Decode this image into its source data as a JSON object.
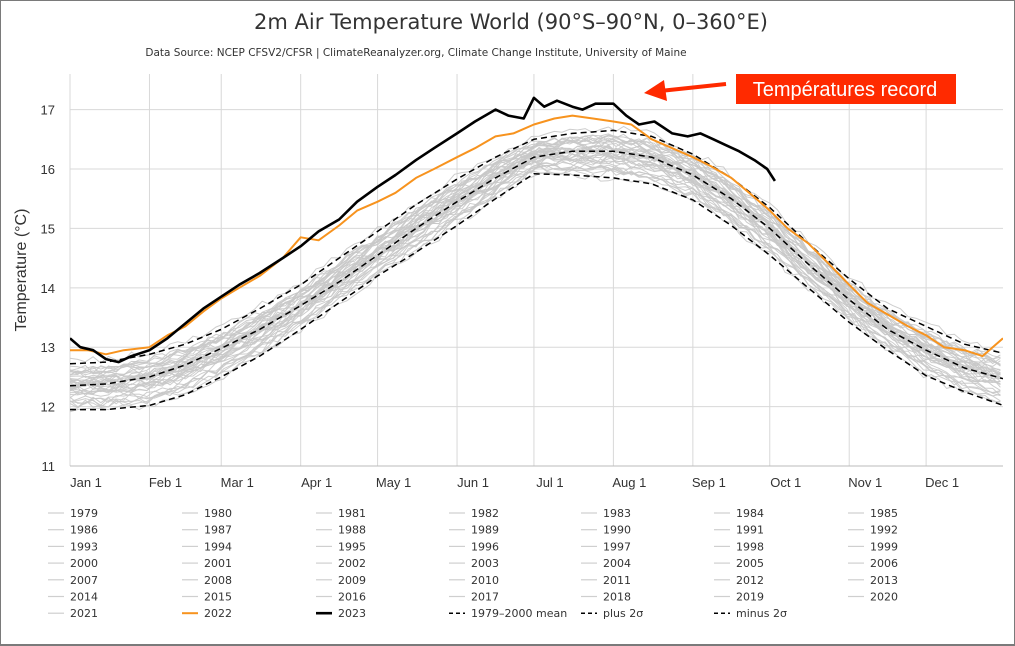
{
  "chart_data": {
    "type": "line",
    "title": "2m Air Temperature World (90°S–90°N, 0–360°E)",
    "subtitle": "Data Source: NCEP CFSV2/CFSR | ClimateReanalyzer.org, Climate Change Institute, University of Maine",
    "ylabel": "Temperature (°C)",
    "xlabel": "",
    "ylim": [
      11,
      17.6
    ],
    "yticks": [
      "11",
      "12",
      "13",
      "14",
      "15",
      "16",
      "17"
    ],
    "x_ticks": [
      {
        "label": "Jan 1",
        "day": 1
      },
      {
        "label": "Feb 1",
        "day": 32
      },
      {
        "label": "Mar 1",
        "day": 60
      },
      {
        "label": "Apr 1",
        "day": 91
      },
      {
        "label": "May 1",
        "day": 121
      },
      {
        "label": "Jun 1",
        "day": 152
      },
      {
        "label": "Jul 1",
        "day": 182
      },
      {
        "label": "Aug 1",
        "day": 213
      },
      {
        "label": "Sep 1",
        "day": 244
      },
      {
        "label": "Oct 1",
        "day": 274
      },
      {
        "label": "Nov 1",
        "day": 305
      },
      {
        "label": "Dec 1",
        "day": 335
      }
    ],
    "grid": true,
    "legend_position": "bottom",
    "annotation": {
      "text": "Températures record",
      "color": "#ff2a00"
    },
    "colors": {
      "past_years": "#c8c8c8",
      "y2022": "#f7931e",
      "y2023": "#000000",
      "stats": "#000000"
    },
    "series": [
      {
        "name": "1979–2000 mean",
        "style": "dashed",
        "x": [
          1,
          15,
          32,
          46,
          60,
          75,
          91,
          106,
          121,
          136,
          152,
          167,
          182,
          197,
          213,
          228,
          244,
          259,
          274,
          289,
          305,
          320,
          335,
          350,
          365
        ],
        "y": [
          12.35,
          12.38,
          12.5,
          12.7,
          12.98,
          13.3,
          13.7,
          14.1,
          14.55,
          15.0,
          15.45,
          15.85,
          16.2,
          16.3,
          16.3,
          16.2,
          15.9,
          15.5,
          15.0,
          14.4,
          13.8,
          13.3,
          12.95,
          12.65,
          12.47
        ]
      },
      {
        "name": "plus 2σ",
        "style": "dashed",
        "x": [
          1,
          15,
          32,
          46,
          60,
          75,
          91,
          106,
          121,
          136,
          152,
          167,
          182,
          197,
          213,
          228,
          244,
          259,
          274,
          289,
          305,
          320,
          335,
          350,
          365
        ],
        "y": [
          12.72,
          12.75,
          12.88,
          13.05,
          13.3,
          13.65,
          14.05,
          14.5,
          14.95,
          15.4,
          15.83,
          16.2,
          16.5,
          16.6,
          16.65,
          16.55,
          16.25,
          15.85,
          15.35,
          14.75,
          14.15,
          13.65,
          13.35,
          13.05,
          12.9
        ]
      },
      {
        "name": "minus 2σ",
        "style": "dashed",
        "x": [
          1,
          15,
          32,
          46,
          60,
          75,
          91,
          106,
          121,
          136,
          152,
          167,
          182,
          197,
          213,
          228,
          244,
          259,
          274,
          289,
          305,
          320,
          335,
          350,
          365
        ],
        "y": [
          11.95,
          11.95,
          12.02,
          12.2,
          12.5,
          12.85,
          13.3,
          13.75,
          14.2,
          14.6,
          15.05,
          15.5,
          15.92,
          15.9,
          15.85,
          15.75,
          15.48,
          15.05,
          14.55,
          14.0,
          13.42,
          12.95,
          12.52,
          12.25,
          12.02
        ]
      },
      {
        "name": "2022",
        "style": "solid",
        "x": [
          1,
          8,
          15,
          22,
          32,
          39,
          46,
          53,
          60,
          67,
          75,
          84,
          91,
          98,
          106,
          113,
          121,
          128,
          136,
          143,
          152,
          159,
          167,
          174,
          182,
          190,
          197,
          205,
          213,
          220,
          228,
          236,
          244,
          251,
          259,
          266,
          274,
          281,
          289,
          296,
          305,
          312,
          320,
          328,
          335,
          342,
          350,
          357,
          365
        ],
        "y": [
          12.95,
          12.95,
          12.88,
          12.95,
          13.0,
          13.2,
          13.35,
          13.6,
          13.82,
          14.0,
          14.2,
          14.5,
          14.85,
          14.8,
          15.05,
          15.3,
          15.45,
          15.6,
          15.85,
          16.0,
          16.2,
          16.35,
          16.55,
          16.6,
          16.75,
          16.85,
          16.9,
          16.85,
          16.8,
          16.75,
          16.5,
          16.35,
          16.2,
          16.05,
          15.85,
          15.6,
          15.3,
          15.0,
          14.75,
          14.45,
          14.05,
          13.75,
          13.55,
          13.35,
          13.2,
          13.0,
          12.95,
          12.85,
          13.15
        ]
      },
      {
        "name": "2023",
        "style": "solid",
        "x": [
          1,
          5,
          10,
          15,
          20,
          25,
          32,
          39,
          46,
          53,
          60,
          67,
          75,
          84,
          91,
          98,
          106,
          113,
          121,
          128,
          136,
          143,
          152,
          159,
          167,
          172,
          178,
          182,
          186,
          191,
          197,
          201,
          206,
          213,
          218,
          223,
          229,
          236,
          242,
          247,
          252,
          257,
          262,
          268,
          273,
          276
        ],
        "y": [
          13.15,
          13.0,
          12.95,
          12.8,
          12.75,
          12.85,
          12.95,
          13.15,
          13.4,
          13.65,
          13.85,
          14.05,
          14.25,
          14.5,
          14.7,
          14.95,
          15.15,
          15.45,
          15.7,
          15.9,
          16.15,
          16.35,
          16.6,
          16.8,
          17.0,
          16.9,
          16.85,
          17.2,
          17.05,
          17.15,
          17.05,
          17.0,
          17.1,
          17.1,
          16.9,
          16.75,
          16.8,
          16.6,
          16.55,
          16.6,
          16.5,
          16.4,
          16.3,
          16.15,
          16.0,
          15.8
        ]
      }
    ],
    "legend": [
      [
        "1979",
        "1980",
        "1981",
        "1982",
        "1983",
        "1984",
        "1985"
      ],
      [
        "1986",
        "1987",
        "1988",
        "1989",
        "1990",
        "1991",
        "1992"
      ],
      [
        "1993",
        "1994",
        "1995",
        "1996",
        "1997",
        "1998",
        "1999"
      ],
      [
        "2000",
        "2001",
        "2002",
        "2003",
        "2004",
        "2005",
        "2006"
      ],
      [
        "2007",
        "2008",
        "2009",
        "2010",
        "2011",
        "2012",
        "2013"
      ],
      [
        "2014",
        "2015",
        "2016",
        "2017",
        "2018",
        "2019",
        "2020"
      ],
      [
        "2021",
        "2022",
        "2023",
        "1979–2000 mean",
        "plus 2σ",
        "minus 2σ"
      ]
    ]
  }
}
